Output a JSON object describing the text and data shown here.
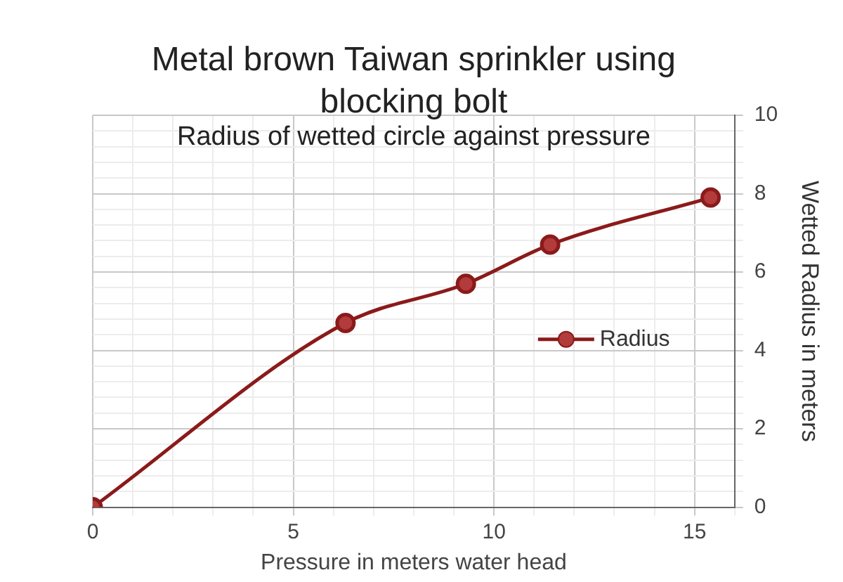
{
  "chart_data": {
    "type": "line",
    "title": "Metal brown Taiwan sprinkler using blocking bolt",
    "subtitle": "Radius of wetted circle against pressure",
    "xlabel": "Pressure in meters water head",
    "ylabel": "Wetted Radius in meters",
    "x": [
      0,
      6.3,
      9.3,
      11.4,
      15.4
    ],
    "series": [
      {
        "name": "Radius",
        "color": "#8b1a1a",
        "values": [
          0,
          4.7,
          5.7,
          6.7,
          7.9
        ]
      }
    ],
    "xlim": [
      0,
      16
    ],
    "xticks": [
      0,
      {
        "value": 1,
        "label": null
      },
      {
        "value": 2,
        "label": null
      },
      {
        "value": 3,
        "label": null
      },
      {
        "value": 4,
        "label": null
      },
      5,
      {
        "value": 6,
        "label": null
      },
      {
        "value": 7,
        "label": null
      },
      {
        "value": 8,
        "label": null
      },
      {
        "value": 9,
        "label": null
      },
      10,
      {
        "value": 11,
        "label": null
      },
      {
        "value": 12,
        "label": null
      },
      {
        "value": 13,
        "label": null
      },
      {
        "value": 14,
        "label": null
      },
      15,
      {
        "value": 16,
        "label": null
      }
    ],
    "ylim": [
      0,
      10
    ],
    "yticks": [
      0,
      {
        "value": 0.4,
        "label": null
      },
      {
        "value": 0.8,
        "label": null
      },
      {
        "value": 1.2,
        "label": null
      },
      {
        "value": 1.6,
        "label": null
      },
      2,
      {
        "value": 2.4,
        "label": null
      },
      {
        "value": 2.8,
        "label": null
      },
      {
        "value": 3.2,
        "label": null
      },
      {
        "value": 3.6,
        "label": null
      },
      4,
      {
        "value": 4.4,
        "label": null
      },
      {
        "value": 4.8,
        "label": null
      },
      {
        "value": 5.2,
        "label": null
      },
      {
        "value": 5.6,
        "label": null
      },
      6,
      {
        "value": 6.4,
        "label": null
      },
      {
        "value": 6.8,
        "label": null
      },
      {
        "value": 7.2,
        "label": null
      },
      {
        "value": 7.6,
        "label": null
      },
      8,
      {
        "value": 8.4,
        "label": null
      },
      {
        "value": 8.8,
        "label": null
      },
      {
        "value": 9.2,
        "label": null
      },
      {
        "value": 9.6,
        "label": null
      },
      10
    ],
    "grid": true,
    "legend": "right",
    "marker": "circle",
    "line_style": "solid"
  }
}
